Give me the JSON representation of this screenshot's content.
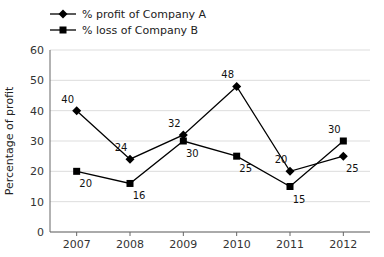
{
  "chart_data": {
    "type": "line",
    "x": [
      2007,
      2008,
      2009,
      2010,
      2011,
      2012
    ],
    "xlim": [
      2006.5,
      2012.5
    ],
    "xticks": [
      2007,
      2008,
      2009,
      2010,
      2011,
      2012
    ],
    "ylabel": "Percentage of profit",
    "ylim": [
      0,
      60
    ],
    "yticks": [
      0,
      10,
      20,
      30,
      40,
      50,
      60
    ],
    "grid": true,
    "legend": "top-left",
    "data_labels": true,
    "series": [
      {
        "name": "% profit of Company A",
        "color": "#000000",
        "marker": "diamond",
        "line_style": "solid",
        "values": [
          40,
          24,
          32,
          48,
          20,
          25
        ]
      },
      {
        "name": "% loss of Company B",
        "color": "#000000",
        "marker": "square",
        "line_style": "solid",
        "values": [
          20,
          16,
          30,
          25,
          15,
          30
        ]
      }
    ]
  }
}
